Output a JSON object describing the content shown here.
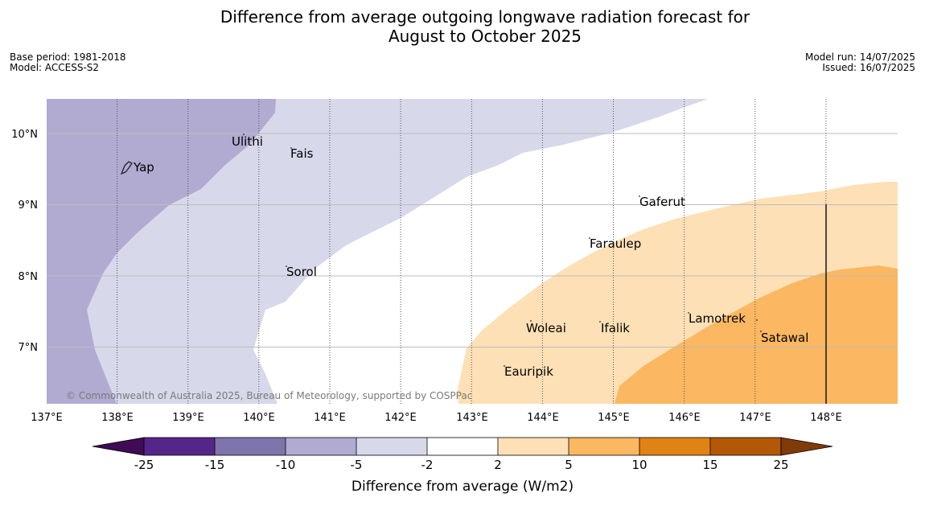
{
  "title_lines": [
    "Difference from average outgoing longwave radiation forecast for",
    "August to October 2025"
  ],
  "meta": {
    "base_period": "Base period: 1981-2018",
    "model": "Model: ACCESS-S2",
    "model_run": "Model run: 14/07/2025",
    "issued": "Issued: 16/07/2025"
  },
  "map": {
    "lon_ticks": [
      "137°E",
      "138°E",
      "139°E",
      "140°E",
      "141°E",
      "142°E",
      "143°E",
      "144°E",
      "145°E",
      "146°E",
      "147°E",
      "148°E"
    ],
    "lat_ticks": [
      "10°N",
      "9°N",
      "8°N",
      "7°N"
    ],
    "places": [
      "Yap",
      "Ulithi",
      "Fais",
      "Sorol",
      "Gaferut",
      "Faraulep",
      "Woleai",
      "Ifalik",
      "Eauripik",
      "Lamotrek",
      "Satawal"
    ],
    "credit": "© Commonwealth of Australia 2025, Bureau of Meteorology, supported by COSPPac",
    "colors": {
      "minus_10_to_minus_5": "#b1aad1",
      "minus_5_to_minus_2": "#d7d8ea",
      "plus_2_to_plus_5": "#fee0b6",
      "plus_5_to_plus_10": "#fbb761"
    }
  },
  "colorbar": {
    "labels": [
      "-25",
      "-15",
      "-10",
      "-5",
      "-2",
      "2",
      "5",
      "10",
      "15",
      "25"
    ],
    "colors": [
      "#3f0b54",
      "#552689",
      "#8074ad",
      "#b1aad1",
      "#d7d8ea",
      "#ffffff",
      "#fee0b6",
      "#fbb761",
      "#e08214",
      "#b35806",
      "#7f3b08"
    ],
    "title": "Difference from average (W/m2)"
  }
}
